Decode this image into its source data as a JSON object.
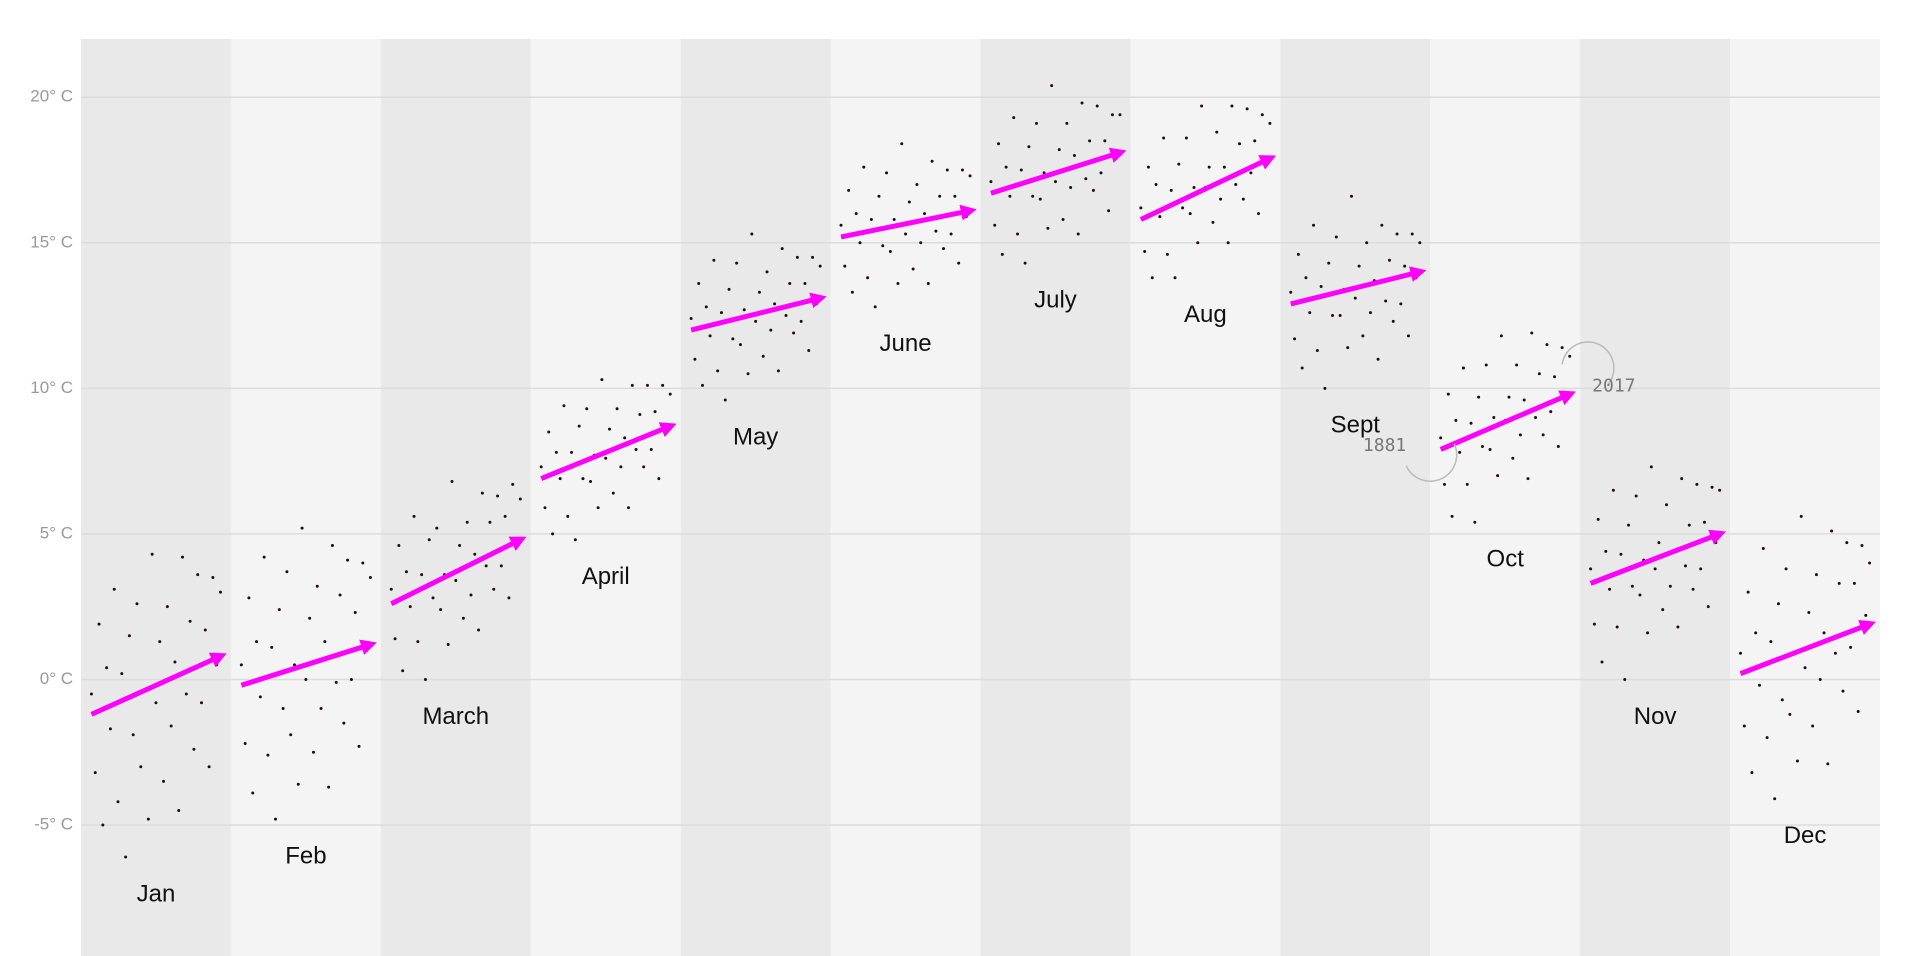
{
  "chart_data": {
    "type": "scatter",
    "x": [
      1881,
      1885,
      1889,
      1893,
      1897,
      1901,
      1905,
      1909,
      1913,
      1917,
      1921,
      1925,
      1929,
      1933,
      1937,
      1941,
      1945,
      1949,
      1953,
      1957,
      1961,
      1965,
      1969,
      1973,
      1977,
      1981,
      1985,
      1989,
      1993,
      1997,
      2001,
      2005,
      2009,
      2013,
      2017
    ],
    "xlim": [
      1870,
      2028
    ],
    "ylim": [
      -9.5,
      22
    ],
    "yticks": [
      {
        "value": -5,
        "label": "-5° C"
      },
      {
        "value": 0,
        "label": "0° C"
      },
      {
        "value": 5,
        "label": "5° C"
      },
      {
        "value": 10,
        "label": "10° C"
      },
      {
        "value": 15,
        "label": "15° C"
      },
      {
        "value": 20,
        "label": "20° C"
      }
    ],
    "grid": true,
    "color": "#1a1010",
    "trend_color": "#ff00ff",
    "series": [
      {
        "name": "Jan",
        "trend": [
          -1.2,
          0.8
        ],
        "values": [
          -0.5,
          -3.2,
          1.9,
          -5.0,
          0.4,
          -1.7,
          3.1,
          -4.2,
          0.2,
          -6.1,
          1.5,
          -1.9,
          2.6,
          -3.0,
          -0.4,
          -4.8,
          4.3,
          -0.8,
          1.3,
          -3.5,
          2.5,
          -1.6,
          0.6,
          -4.5,
          4.2,
          -0.5,
          2.0,
          -2.4,
          3.6,
          -0.8,
          1.7,
          -3.0,
          3.5,
          0.5,
          3.0
        ]
      },
      {
        "name": "Feb",
        "trend": [
          -0.2,
          1.2
        ],
        "values": [
          0.5,
          -2.2,
          2.8,
          -3.9,
          1.3,
          -0.6,
          4.2,
          -2.6,
          1.1,
          -4.8,
          2.4,
          -1.0,
          3.7,
          -1.9,
          0.5,
          -3.6,
          5.2,
          0.0,
          2.1,
          -2.5,
          3.2,
          -1.0,
          1.3,
          -3.7,
          4.6,
          -0.1,
          2.9,
          -1.5,
          4.1,
          0.0,
          2.3,
          -2.3,
          4.0,
          1.0,
          3.5
        ]
      },
      {
        "name": "March",
        "trend": [
          2.6,
          4.8
        ],
        "values": [
          3.1,
          1.4,
          4.6,
          0.3,
          3.7,
          2.5,
          5.6,
          1.3,
          3.6,
          0.0,
          4.8,
          2.8,
          5.2,
          2.4,
          3.6,
          1.2,
          6.8,
          3.4,
          4.6,
          2.1,
          5.4,
          2.9,
          4.3,
          1.7,
          6.4,
          3.9,
          5.4,
          3.1,
          6.3,
          3.9,
          5.6,
          2.8,
          6.7,
          4.6,
          6.2
        ]
      },
      {
        "name": "April",
        "trend": [
          6.9,
          8.7
        ],
        "values": [
          7.3,
          5.9,
          8.5,
          5.0,
          7.8,
          6.9,
          9.4,
          5.6,
          7.8,
          4.8,
          8.7,
          6.9,
          9.3,
          6.8,
          7.7,
          5.9,
          10.3,
          7.6,
          8.6,
          6.4,
          9.3,
          7.3,
          8.3,
          5.9,
          10.1,
          7.9,
          9.1,
          7.3,
          10.1,
          7.9,
          9.2,
          6.9,
          10.1,
          8.5,
          9.8
        ]
      },
      {
        "name": "May",
        "trend": [
          12.0,
          13.1
        ],
        "values": [
          12.4,
          11.0,
          13.6,
          10.1,
          12.8,
          11.8,
          14.4,
          10.6,
          12.6,
          9.6,
          13.4,
          11.7,
          14.3,
          11.5,
          12.7,
          10.5,
          15.3,
          12.3,
          13.3,
          11.1,
          14.0,
          12.0,
          12.9,
          10.6,
          14.8,
          12.5,
          13.6,
          11.9,
          14.5,
          12.3,
          13.6,
          11.3,
          14.5,
          12.9,
          14.2
        ]
      },
      {
        "name": "June",
        "trend": [
          15.2,
          16.1
        ],
        "values": [
          15.6,
          14.2,
          16.8,
          13.3,
          16.0,
          15.0,
          17.6,
          13.8,
          15.8,
          12.8,
          16.6,
          14.9,
          17.4,
          14.7,
          15.8,
          13.6,
          18.4,
          15.3,
          16.4,
          14.1,
          17.0,
          15.0,
          16.0,
          13.6,
          17.8,
          15.4,
          16.6,
          14.8,
          17.5,
          15.3,
          16.6,
          14.3,
          17.5,
          15.9,
          17.3
        ]
      },
      {
        "name": "July",
        "trend": [
          16.7,
          18.1
        ],
        "values": [
          17.1,
          15.6,
          18.4,
          14.6,
          17.6,
          16.6,
          19.3,
          15.3,
          17.5,
          14.3,
          18.3,
          16.6,
          19.1,
          16.5,
          17.4,
          15.5,
          20.4,
          17.1,
          18.2,
          15.8,
          19.1,
          16.9,
          18.0,
          15.3,
          19.8,
          17.2,
          18.5,
          16.8,
          19.7,
          17.4,
          18.5,
          16.1,
          19.4,
          17.9,
          19.4
        ]
      },
      {
        "name": "Aug",
        "trend": [
          15.8,
          17.9
        ],
        "values": [
          16.2,
          14.7,
          17.6,
          13.8,
          17.0,
          15.9,
          18.6,
          14.6,
          16.8,
          13.8,
          17.7,
          16.2,
          18.6,
          16.0,
          16.9,
          15.0,
          19.7,
          16.9,
          17.6,
          15.7,
          18.8,
          16.5,
          17.6,
          15.0,
          19.7,
          17.0,
          18.4,
          16.5,
          19.6,
          17.4,
          18.5,
          16.0,
          19.4,
          17.9,
          19.1
        ]
      },
      {
        "name": "Sept",
        "trend": [
          12.9,
          14.0
        ],
        "values": [
          13.3,
          11.7,
          14.6,
          10.7,
          13.8,
          12.6,
          15.6,
          11.3,
          13.5,
          10.0,
          14.3,
          12.5,
          15.2,
          12.5,
          13.4,
          11.4,
          16.6,
          13.1,
          14.2,
          11.8,
          15.0,
          12.6,
          13.7,
          11.0,
          15.6,
          13.0,
          14.4,
          12.3,
          15.3,
          12.9,
          14.2,
          11.8,
          15.3,
          13.8,
          15.0
        ]
      },
      {
        "name": "Oct",
        "trend": [
          7.9,
          9.8
        ],
        "values": [
          8.3,
          6.7,
          9.8,
          5.6,
          8.9,
          7.8,
          10.7,
          6.7,
          8.8,
          5.4,
          9.7,
          8.0,
          10.8,
          7.9,
          9.0,
          7.0,
          11.8,
          8.9,
          9.7,
          7.6,
          10.8,
          8.4,
          9.6,
          6.9,
          11.9,
          9.0,
          10.5,
          8.4,
          11.5,
          9.2,
          10.4,
          8.0,
          11.4,
          9.7,
          11.1
        ]
      },
      {
        "name": "Nov",
        "trend": [
          3.3,
          5.0
        ],
        "values": [
          3.8,
          1.9,
          5.5,
          0.6,
          4.4,
          3.1,
          6.5,
          1.8,
          4.3,
          0.0,
          5.3,
          3.2,
          6.3,
          2.9,
          4.1,
          1.6,
          7.3,
          3.8,
          4.7,
          2.4,
          6.0,
          3.2,
          4.4,
          1.8,
          6.9,
          3.9,
          5.3,
          3.1,
          6.7,
          3.8,
          5.4,
          2.5,
          6.6,
          4.7,
          6.5
        ]
      },
      {
        "name": "Dec",
        "trend": [
          0.2,
          1.9
        ],
        "values": [
          0.9,
          -1.6,
          3.0,
          -3.2,
          1.6,
          -0.2,
          4.5,
          -2.0,
          1.3,
          -4.1,
          2.6,
          -0.7,
          3.8,
          -1.2,
          0.9,
          -2.8,
          5.6,
          0.4,
          2.3,
          -1.6,
          3.6,
          0.0,
          1.6,
          -2.9,
          5.1,
          0.9,
          3.3,
          -0.4,
          4.7,
          1.1,
          3.3,
          -1.1,
          4.6,
          2.2,
          4.0
        ]
      }
    ]
  }
}
